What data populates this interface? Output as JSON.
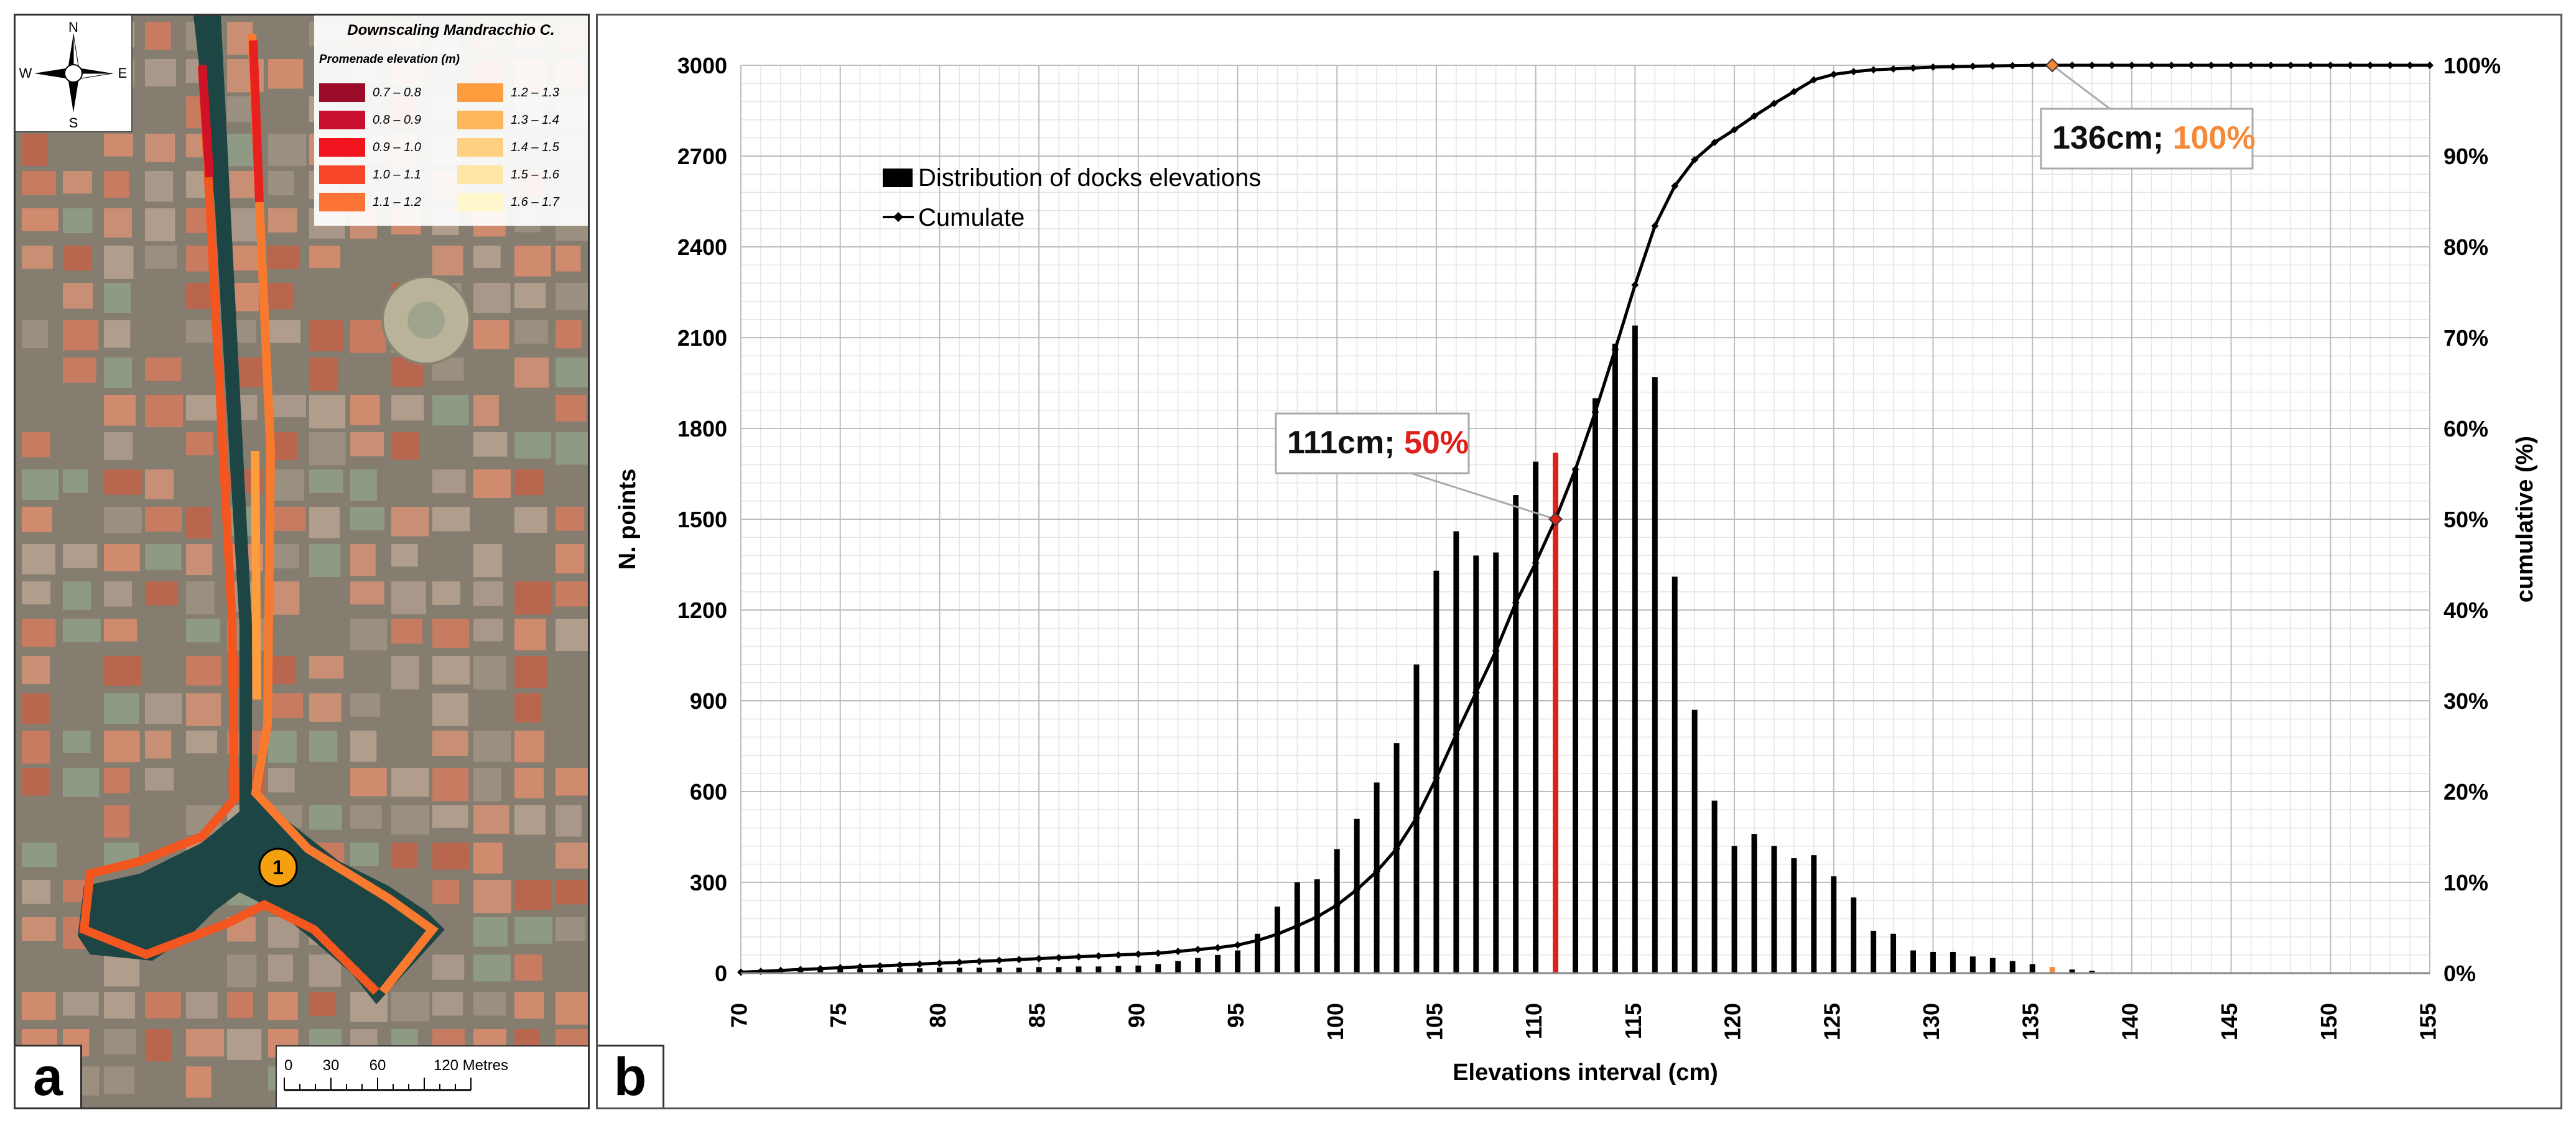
{
  "panel_a": {
    "letter": "a",
    "title": "Downscaling Mandracchio C.",
    "legend_title": "Promenade elevation (m)",
    "legend": [
      {
        "label": "0.7 – 0.8",
        "color": "#9b0a26"
      },
      {
        "label": "0.8 – 0.9",
        "color": "#c8102e"
      },
      {
        "label": "0.9 – 1.0",
        "color": "#f0141e"
      },
      {
        "label": "1.0 – 1.1",
        "color": "#f7452a"
      },
      {
        "label": "1.1 – 1.2",
        "color": "#fb7335"
      },
      {
        "label": "1.2 – 1.3",
        "color": "#fd9d3e"
      },
      {
        "label": "1.3 – 1.4",
        "color": "#feb65a"
      },
      {
        "label": "1.4 – 1.5",
        "color": "#fed07f"
      },
      {
        "label": "1.5 – 1.6",
        "color": "#fee6a6"
      },
      {
        "label": "1.6 – 1.7",
        "color": "#fff6cc"
      }
    ],
    "compass": {
      "n": "N",
      "s": "S",
      "e": "E",
      "w": "W"
    },
    "marker": "1",
    "scale": {
      "ticks": [
        "0",
        "30",
        "60"
      ],
      "end_label": "120 Metres"
    }
  },
  "panel_b": {
    "letter": "b"
  },
  "chart_data": {
    "type": "bar",
    "xlabel": "Elevations interval (cm)",
    "ylabel": "N. points",
    "y2label": "cumulative (%)",
    "ylim": [
      0,
      3000
    ],
    "y2lim": [
      0,
      100
    ],
    "xlim": [
      70,
      155
    ],
    "x_ticks": [
      "70",
      "75",
      "80",
      "85",
      "90",
      "95",
      "100",
      "105",
      "110",
      "115",
      "120",
      "125",
      "130",
      "135",
      "140",
      "145",
      "150",
      "155"
    ],
    "y_ticks": [
      "0",
      "300",
      "600",
      "900",
      "1200",
      "1500",
      "1800",
      "2100",
      "2400",
      "2700",
      "3000"
    ],
    "y2_ticks": [
      "0%",
      "10%",
      "20%",
      "30%",
      "40%",
      "50%",
      "60%",
      "70%",
      "80%",
      "90%",
      "100%"
    ],
    "grid": true,
    "legend_position": "top-left",
    "series": [
      {
        "name": "Distribution of docks elevations",
        "type": "bar",
        "color": "#000000",
        "x": [
          70,
          71,
          72,
          73,
          74,
          75,
          76,
          77,
          78,
          79,
          80,
          81,
          82,
          83,
          84,
          85,
          86,
          87,
          88,
          89,
          90,
          91,
          92,
          93,
          94,
          95,
          96,
          97,
          98,
          99,
          100,
          101,
          102,
          103,
          104,
          105,
          106,
          107,
          108,
          109,
          110,
          111,
          112,
          113,
          114,
          115,
          116,
          117,
          118,
          119,
          120,
          121,
          122,
          123,
          124,
          125,
          126,
          127,
          128,
          129,
          130,
          131,
          132,
          133,
          134,
          135,
          136,
          137,
          138,
          139,
          140
        ],
        "values": [
          5,
          10,
          10,
          12,
          12,
          14,
          14,
          14,
          16,
          16,
          18,
          18,
          18,
          18,
          18,
          20,
          20,
          22,
          22,
          24,
          25,
          30,
          40,
          50,
          60,
          75,
          130,
          220,
          300,
          310,
          410,
          510,
          630,
          760,
          1020,
          1330,
          1460,
          1380,
          1390,
          1580,
          1690,
          1720,
          1670,
          1900,
          2080,
          2140,
          1970,
          1310,
          870,
          570,
          420,
          460,
          420,
          380,
          390,
          320,
          250,
          140,
          130,
          75,
          70,
          70,
          55,
          50,
          40,
          30,
          20,
          12,
          8,
          0,
          0
        ]
      },
      {
        "name": "Cumulate",
        "type": "line",
        "color": "#000000",
        "x": [
          70,
          71,
          72,
          73,
          74,
          75,
          76,
          77,
          78,
          79,
          80,
          81,
          82,
          83,
          84,
          85,
          86,
          87,
          88,
          89,
          90,
          91,
          92,
          93,
          94,
          95,
          96,
          97,
          98,
          99,
          100,
          101,
          102,
          103,
          104,
          105,
          106,
          107,
          108,
          109,
          110,
          111,
          112,
          113,
          114,
          115,
          116,
          117,
          118,
          119,
          120,
          121,
          122,
          123,
          124,
          125,
          126,
          127,
          128,
          129,
          130,
          131,
          132,
          133,
          134,
          135,
          136,
          137,
          138,
          139,
          140,
          141,
          142,
          143,
          144,
          145,
          146,
          147,
          148,
          149,
          150,
          151,
          152,
          153,
          154,
          155
        ],
        "values": [
          0.1,
          0.2,
          0.3,
          0.4,
          0.5,
          0.6,
          0.7,
          0.8,
          0.9,
          1.0,
          1.1,
          1.2,
          1.3,
          1.4,
          1.5,
          1.6,
          1.7,
          1.8,
          1.9,
          2.0,
          2.1,
          2.2,
          2.4,
          2.6,
          2.8,
          3.1,
          3.6,
          4.3,
          5.2,
          6.2,
          7.5,
          9.2,
          11.2,
          13.7,
          17.1,
          21.5,
          26.3,
          30.9,
          35.5,
          40.8,
          45.2,
          50,
          55.5,
          61.8,
          68.7,
          75.8,
          82.3,
          86.7,
          89.6,
          91.5,
          92.9,
          94.4,
          95.8,
          97.1,
          98.4,
          99.0,
          99.3,
          99.5,
          99.6,
          99.7,
          99.8,
          99.85,
          99.9,
          99.93,
          99.96,
          99.98,
          100,
          100,
          100,
          100,
          100,
          100,
          100,
          100,
          100,
          100,
          100,
          100,
          100,
          100,
          100,
          100,
          100,
          100,
          100,
          100
        ]
      }
    ],
    "annotations": [
      {
        "text_value": "111cm",
        "text_pct": "50%",
        "x": 111,
        "pct": 50,
        "pct_color": "#e0201c"
      },
      {
        "text_value": "136cm",
        "text_pct": "100%",
        "x": 136,
        "pct": 100,
        "pct_color": "#f58a3a"
      }
    ],
    "highlight_bars": [
      {
        "x": 111,
        "color": "#e0201c"
      },
      {
        "x": 136,
        "color": "#f58a3a"
      }
    ]
  }
}
